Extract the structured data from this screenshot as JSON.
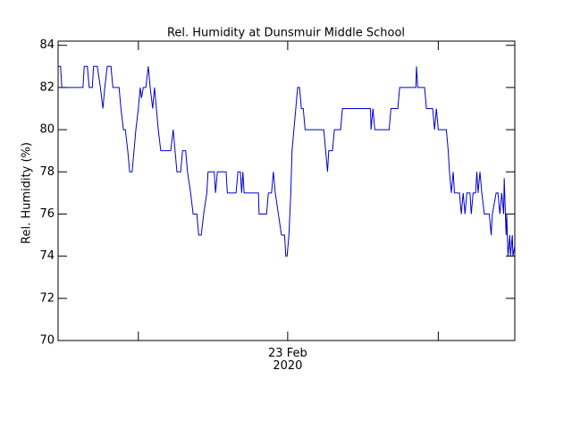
{
  "chart_data": {
    "type": "line",
    "title": "Rel. Humidity at Dunsmuir Middle School",
    "ylabel": "Rel. Humidity (%)",
    "xlim": [
      0,
      73.4
    ],
    "xticks": [
      {
        "value": 36.9,
        "label": "23 Feb\n2020"
      }
    ],
    "xminorticks": [
      12.9,
      61.1
    ],
    "ylim": [
      70,
      84.2
    ],
    "yticks": [
      70,
      72,
      74,
      76,
      78,
      80,
      82,
      84
    ],
    "grid": false,
    "series": [
      {
        "color": "#0000cc",
        "x": [
          0,
          0.4,
          0.6,
          4.0,
          4.2,
          4.7,
          5.0,
          5.5,
          5.7,
          6.3,
          6.8,
          7.2,
          7.5,
          7.9,
          8.5,
          8.8,
          9.8,
          10.1,
          10.5,
          10.8,
          11.2,
          11.5,
          11.9,
          12.2,
          12.5,
          12.9,
          13.2,
          13.4,
          13.7,
          14.1,
          14.5,
          14.8,
          15.2,
          15.5,
          15.8,
          16.1,
          16.5,
          18.1,
          18.5,
          18.8,
          19.1,
          19.7,
          20.0,
          20.5,
          20.8,
          21.3,
          21.7,
          22.3,
          22.6,
          23.0,
          23.4,
          23.9,
          24.1,
          25.1,
          25.3,
          25.6,
          27.0,
          27.2,
          28.6,
          28.9,
          29.3,
          29.5,
          29.7,
          29.9,
          32.2,
          32.3,
          33.5,
          33.8,
          34.3,
          34.6,
          34.9,
          35.4,
          35.9,
          36.4,
          36.6,
          36.8,
          37.1,
          37.4,
          37.6,
          37.9,
          38.2,
          38.5,
          38.8,
          39.1,
          39.4,
          39.7,
          42.7,
          43.0,
          43.3,
          43.5,
          44.1,
          44.4,
          45.4,
          45.7,
          50.2,
          50.3,
          50.6,
          50.9,
          53.2,
          53.5,
          54.6,
          54.9,
          57.5,
          57.6,
          57.8,
          58.9,
          59.2,
          60.2,
          60.5,
          60.8,
          61.1,
          62.4,
          62.7,
          62.9,
          63.2,
          63.5,
          63.7,
          64.5,
          64.8,
          65.1,
          65.4,
          65.7,
          66.2,
          66.4,
          66.7,
          67.1,
          67.3,
          67.5,
          67.8,
          68.1,
          68.5,
          69.3,
          69.6,
          69.8,
          70.4,
          70.7,
          71.0,
          71.3,
          71.6,
          71.7,
          72.0,
          72.1,
          72.3,
          72.6,
          72.7,
          73.0,
          73.1,
          73.4
        ],
        "values": [
          83,
          83,
          82,
          82,
          83,
          83,
          82,
          82,
          83,
          83,
          82,
          81,
          82,
          83,
          83,
          82,
          82,
          81,
          80,
          80,
          79,
          78,
          78,
          79,
          80,
          81,
          82,
          81.5,
          82,
          82,
          83,
          82,
          81,
          82,
          81,
          80,
          79,
          79,
          80,
          79,
          78,
          78,
          79,
          79,
          78,
          77,
          76,
          76,
          75,
          75,
          76,
          77,
          78,
          78,
          77,
          78,
          78,
          77,
          77,
          78,
          78,
          77,
          78,
          77,
          77,
          76,
          76,
          77,
          77,
          78,
          77,
          76,
          75,
          75,
          74,
          74,
          75,
          77,
          79,
          80,
          81,
          82,
          82,
          81,
          81,
          80,
          80,
          79,
          78,
          79,
          79,
          80,
          80,
          81,
          81,
          80,
          81,
          80,
          80,
          81,
          81,
          82,
          82,
          83,
          82,
          82,
          81,
          81,
          80,
          81,
          80,
          80,
          79,
          78,
          77,
          78,
          77,
          77,
          76,
          77,
          76,
          77,
          77,
          76,
          77,
          77,
          78,
          77,
          78,
          77,
          76,
          76,
          75,
          76,
          77,
          77,
          76,
          77,
          76,
          77.7,
          75,
          76,
          74,
          75,
          74,
          75,
          74,
          74.5
        ]
      }
    ]
  }
}
